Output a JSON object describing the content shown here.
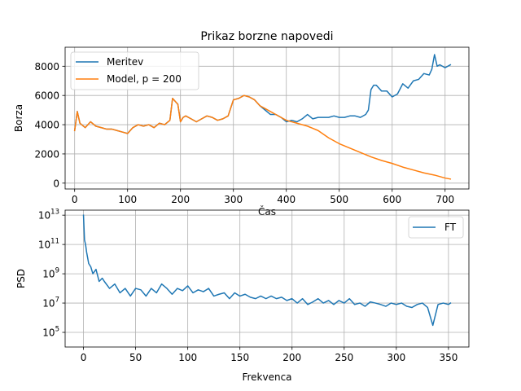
{
  "chart_data": [
    {
      "type": "line",
      "title": "Prikaz borzne napovedi",
      "xlabel": "Čas",
      "ylabel": "Borza",
      "xlim": [
        -18,
        745
      ],
      "ylim": [
        -400,
        9300
      ],
      "xticks": [
        0,
        100,
        200,
        300,
        400,
        500,
        600,
        700
      ],
      "yticks": [
        0,
        2000,
        4000,
        6000,
        8000
      ],
      "grid": true,
      "legend_position": "upper-left",
      "series": [
        {
          "name": "Meritev",
          "color": "#1f77b4",
          "x": [
            0,
            5,
            10,
            20,
            30,
            40,
            50,
            60,
            70,
            80,
            90,
            100,
            110,
            120,
            130,
            140,
            150,
            160,
            170,
            180,
            185,
            190,
            195,
            200,
            205,
            210,
            220,
            230,
            240,
            250,
            260,
            270,
            280,
            290,
            300,
            310,
            320,
            330,
            340,
            350,
            360,
            370,
            380,
            390,
            400,
            410,
            420,
            430,
            440,
            450,
            460,
            470,
            480,
            490,
            500,
            510,
            520,
            530,
            540,
            550,
            555,
            560,
            565,
            570,
            580,
            590,
            600,
            610,
            620,
            630,
            640,
            650,
            660,
            670,
            675,
            680,
            685,
            690,
            700,
            710
          ],
          "y": [
            3600,
            4900,
            4100,
            3800,
            4200,
            3900,
            3800,
            3700,
            3700,
            3600,
            3500,
            3400,
            3800,
            4000,
            3900,
            4000,
            3800,
            4100,
            4000,
            4300,
            5800,
            5600,
            5400,
            4200,
            4500,
            4600,
            4400,
            4200,
            4400,
            4600,
            4500,
            4300,
            4400,
            4600,
            5700,
            5800,
            6000,
            5900,
            5700,
            5300,
            5000,
            4700,
            4700,
            4500,
            4200,
            4300,
            4200,
            4400,
            4700,
            4400,
            4500,
            4500,
            4500,
            4600,
            4500,
            4500,
            4600,
            4600,
            4500,
            4700,
            5000,
            6400,
            6700,
            6700,
            6300,
            6300,
            5900,
            6100,
            6800,
            6500,
            7000,
            7100,
            7500,
            7400,
            7800,
            8800,
            8000,
            8100,
            7900,
            8100
          ]
        },
        {
          "name": "Model, p = 200",
          "color": "#ff7f0e",
          "x": [
            0,
            5,
            10,
            20,
            30,
            40,
            50,
            60,
            70,
            80,
            90,
            100,
            110,
            120,
            130,
            140,
            150,
            160,
            170,
            180,
            185,
            190,
            195,
            200,
            205,
            210,
            220,
            230,
            240,
            250,
            260,
            270,
            280,
            290,
            300,
            310,
            320,
            330,
            340,
            350,
            360,
            370,
            380,
            390,
            400,
            420,
            440,
            460,
            480,
            500,
            520,
            540,
            560,
            580,
            600,
            620,
            640,
            660,
            680,
            700,
            710
          ],
          "y": [
            3600,
            4900,
            4100,
            3800,
            4200,
            3900,
            3800,
            3700,
            3700,
            3600,
            3500,
            3400,
            3800,
            4000,
            3900,
            4000,
            3800,
            4100,
            4000,
            4300,
            5800,
            5600,
            5400,
            4200,
            4500,
            4600,
            4400,
            4200,
            4400,
            4600,
            4500,
            4300,
            4400,
            4600,
            5700,
            5800,
            6000,
            5900,
            5700,
            5300,
            5100,
            4900,
            4700,
            4500,
            4300,
            4100,
            3900,
            3600,
            3100,
            2700,
            2400,
            2100,
            1800,
            1550,
            1350,
            1100,
            900,
            700,
            550,
            350,
            280
          ]
        }
      ]
    },
    {
      "type": "line",
      "title": "",
      "xlabel": "Frekvenca",
      "ylabel": "PSD",
      "yscale": "log",
      "xlim": [
        -17.6,
        369.6
      ],
      "ylim": [
        10000.0,
        22000000000000.0
      ],
      "xticks": [
        0,
        50,
        100,
        150,
        200,
        250,
        300,
        350
      ],
      "yticks": [
        100000,
        10000000,
        1000000000,
        100000000000,
        10000000000000
      ],
      "yticklabels": [
        {
          "base": "10",
          "exp": "5"
        },
        {
          "base": "10",
          "exp": "7"
        },
        {
          "base": "10",
          "exp": "9"
        },
        {
          "base": "10",
          "exp": "11"
        },
        {
          "base": "10",
          "exp": "13"
        }
      ],
      "grid": true,
      "legend_position": "upper-right",
      "series": [
        {
          "name": "FT",
          "color": "#1f77b4",
          "x": [
            0,
            1,
            2,
            3,
            5,
            7,
            9,
            12,
            15,
            18,
            20,
            25,
            30,
            35,
            40,
            45,
            50,
            55,
            60,
            65,
            70,
            75,
            80,
            85,
            90,
            95,
            100,
            105,
            110,
            115,
            120,
            125,
            130,
            135,
            140,
            145,
            150,
            155,
            160,
            165,
            170,
            175,
            180,
            185,
            190,
            195,
            200,
            205,
            210,
            215,
            220,
            225,
            230,
            235,
            240,
            245,
            250,
            255,
            260,
            265,
            270,
            275,
            280,
            285,
            290,
            295,
            300,
            305,
            310,
            315,
            320,
            325,
            330,
            335,
            340,
            345,
            350,
            352
          ],
          "y": [
            10000000000000.0,
            200000000000.0,
            100000000000.0,
            30000000000.0,
            5000000000.0,
            3000000000.0,
            1000000000.0,
            2000000000.0,
            300000000.0,
            500000000.0,
            300000000.0,
            100000000.0,
            200000000.0,
            50000000.0,
            100000000.0,
            30000000.0,
            100000000.0,
            80000000.0,
            30000000.0,
            100000000.0,
            50000000.0,
            200000000.0,
            100000000.0,
            40000000.0,
            100000000.0,
            70000000.0,
            150000000.0,
            50000000.0,
            80000000.0,
            60000000.0,
            100000000.0,
            30000000.0,
            40000000.0,
            50000000.0,
            20000000.0,
            50000000.0,
            30000000.0,
            40000000.0,
            25000000.0,
            20000000.0,
            30000000.0,
            20000000.0,
            30000000.0,
            20000000.0,
            25000000.0,
            15000000.0,
            20000000.0,
            10000000.0,
            20000000.0,
            8000000.0,
            12000000.0,
            20000000.0,
            10000000.0,
            15000000.0,
            8000000.0,
            15000000.0,
            10000000.0,
            20000000.0,
            8000000.0,
            10000000.0,
            6000000.0,
            12000000.0,
            10000000.0,
            8000000.0,
            6000000.0,
            10000000.0,
            8000000.0,
            10000000.0,
            6000000.0,
            5000000.0,
            8000000.0,
            10000000.0,
            5000000.0,
            300000.0,
            8000000.0,
            10000000.0,
            8000000.0,
            10000000.0
          ]
        }
      ]
    }
  ]
}
